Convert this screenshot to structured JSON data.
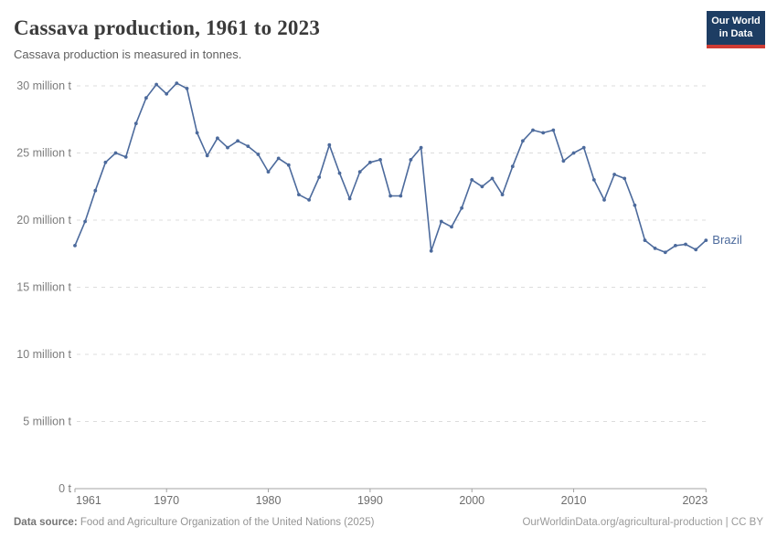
{
  "header": {
    "title": "Cassava production, 1961 to 2023",
    "subtitle": "Cassava production is measured in tonnes."
  },
  "logo": {
    "line1": "Our World",
    "line2": "in Data",
    "bg_color": "#1d3d63",
    "accent_color": "#cf3b34"
  },
  "footer": {
    "source_label": "Data source:",
    "source_text": "Food and Agriculture Organization of the United Nations (2025)",
    "right_text": "OurWorldinData.org/agricultural-production | CC BY"
  },
  "chart_data": {
    "type": "line",
    "title": "Cassava production, 1961 to 2023",
    "xlabel": "",
    "ylabel": "",
    "unit": "million tonnes",
    "ylim": [
      0,
      30
    ],
    "grid": "horizontal-dashed",
    "legend_position": "end-of-line",
    "yticks": [
      {
        "value": 0,
        "label": "0 t"
      },
      {
        "value": 5,
        "label": "5 million t"
      },
      {
        "value": 10,
        "label": "10 million t"
      },
      {
        "value": 15,
        "label": "15 million t"
      },
      {
        "value": 20,
        "label": "20 million t"
      },
      {
        "value": 25,
        "label": "25 million t"
      },
      {
        "value": 30,
        "label": "30 million t"
      }
    ],
    "xticks": [
      1961,
      1970,
      1980,
      1990,
      2000,
      2010,
      2023
    ],
    "x": [
      1961,
      1962,
      1963,
      1964,
      1965,
      1966,
      1967,
      1968,
      1969,
      1970,
      1971,
      1972,
      1973,
      1974,
      1975,
      1976,
      1977,
      1978,
      1979,
      1980,
      1981,
      1982,
      1983,
      1984,
      1985,
      1986,
      1987,
      1988,
      1989,
      1990,
      1991,
      1992,
      1993,
      1994,
      1995,
      1996,
      1997,
      1998,
      1999,
      2000,
      2001,
      2002,
      2003,
      2004,
      2005,
      2006,
      2007,
      2008,
      2009,
      2010,
      2011,
      2012,
      2013,
      2014,
      2015,
      2016,
      2017,
      2018,
      2019,
      2020,
      2021,
      2022,
      2023
    ],
    "series": [
      {
        "name": "Brazil",
        "color": "#4C6A9C",
        "values": [
          18.1,
          19.9,
          22.2,
          24.3,
          25.0,
          24.7,
          27.2,
          29.1,
          30.1,
          29.4,
          30.2,
          29.8,
          26.5,
          24.8,
          26.1,
          25.4,
          25.9,
          25.5,
          24.9,
          23.6,
          24.6,
          24.1,
          21.9,
          21.5,
          23.2,
          25.6,
          23.5,
          21.6,
          23.6,
          24.3,
          24.5,
          21.8,
          21.8,
          24.5,
          25.4,
          17.7,
          19.9,
          19.5,
          20.9,
          23.0,
          22.5,
          23.1,
          21.9,
          24.0,
          25.9,
          26.7,
          26.5,
          26.7,
          24.4,
          25.0,
          25.4,
          23.0,
          21.5,
          23.4,
          23.1,
          21.1,
          18.5,
          17.9,
          17.6,
          18.1,
          18.2,
          17.8,
          18.5
        ]
      }
    ],
    "colors": {
      "gridline": "#dcdcdc",
      "axis": "#a3a3a3",
      "ytick_label": "#7c7c7c",
      "xtick_label": "#6d6d6d"
    }
  }
}
